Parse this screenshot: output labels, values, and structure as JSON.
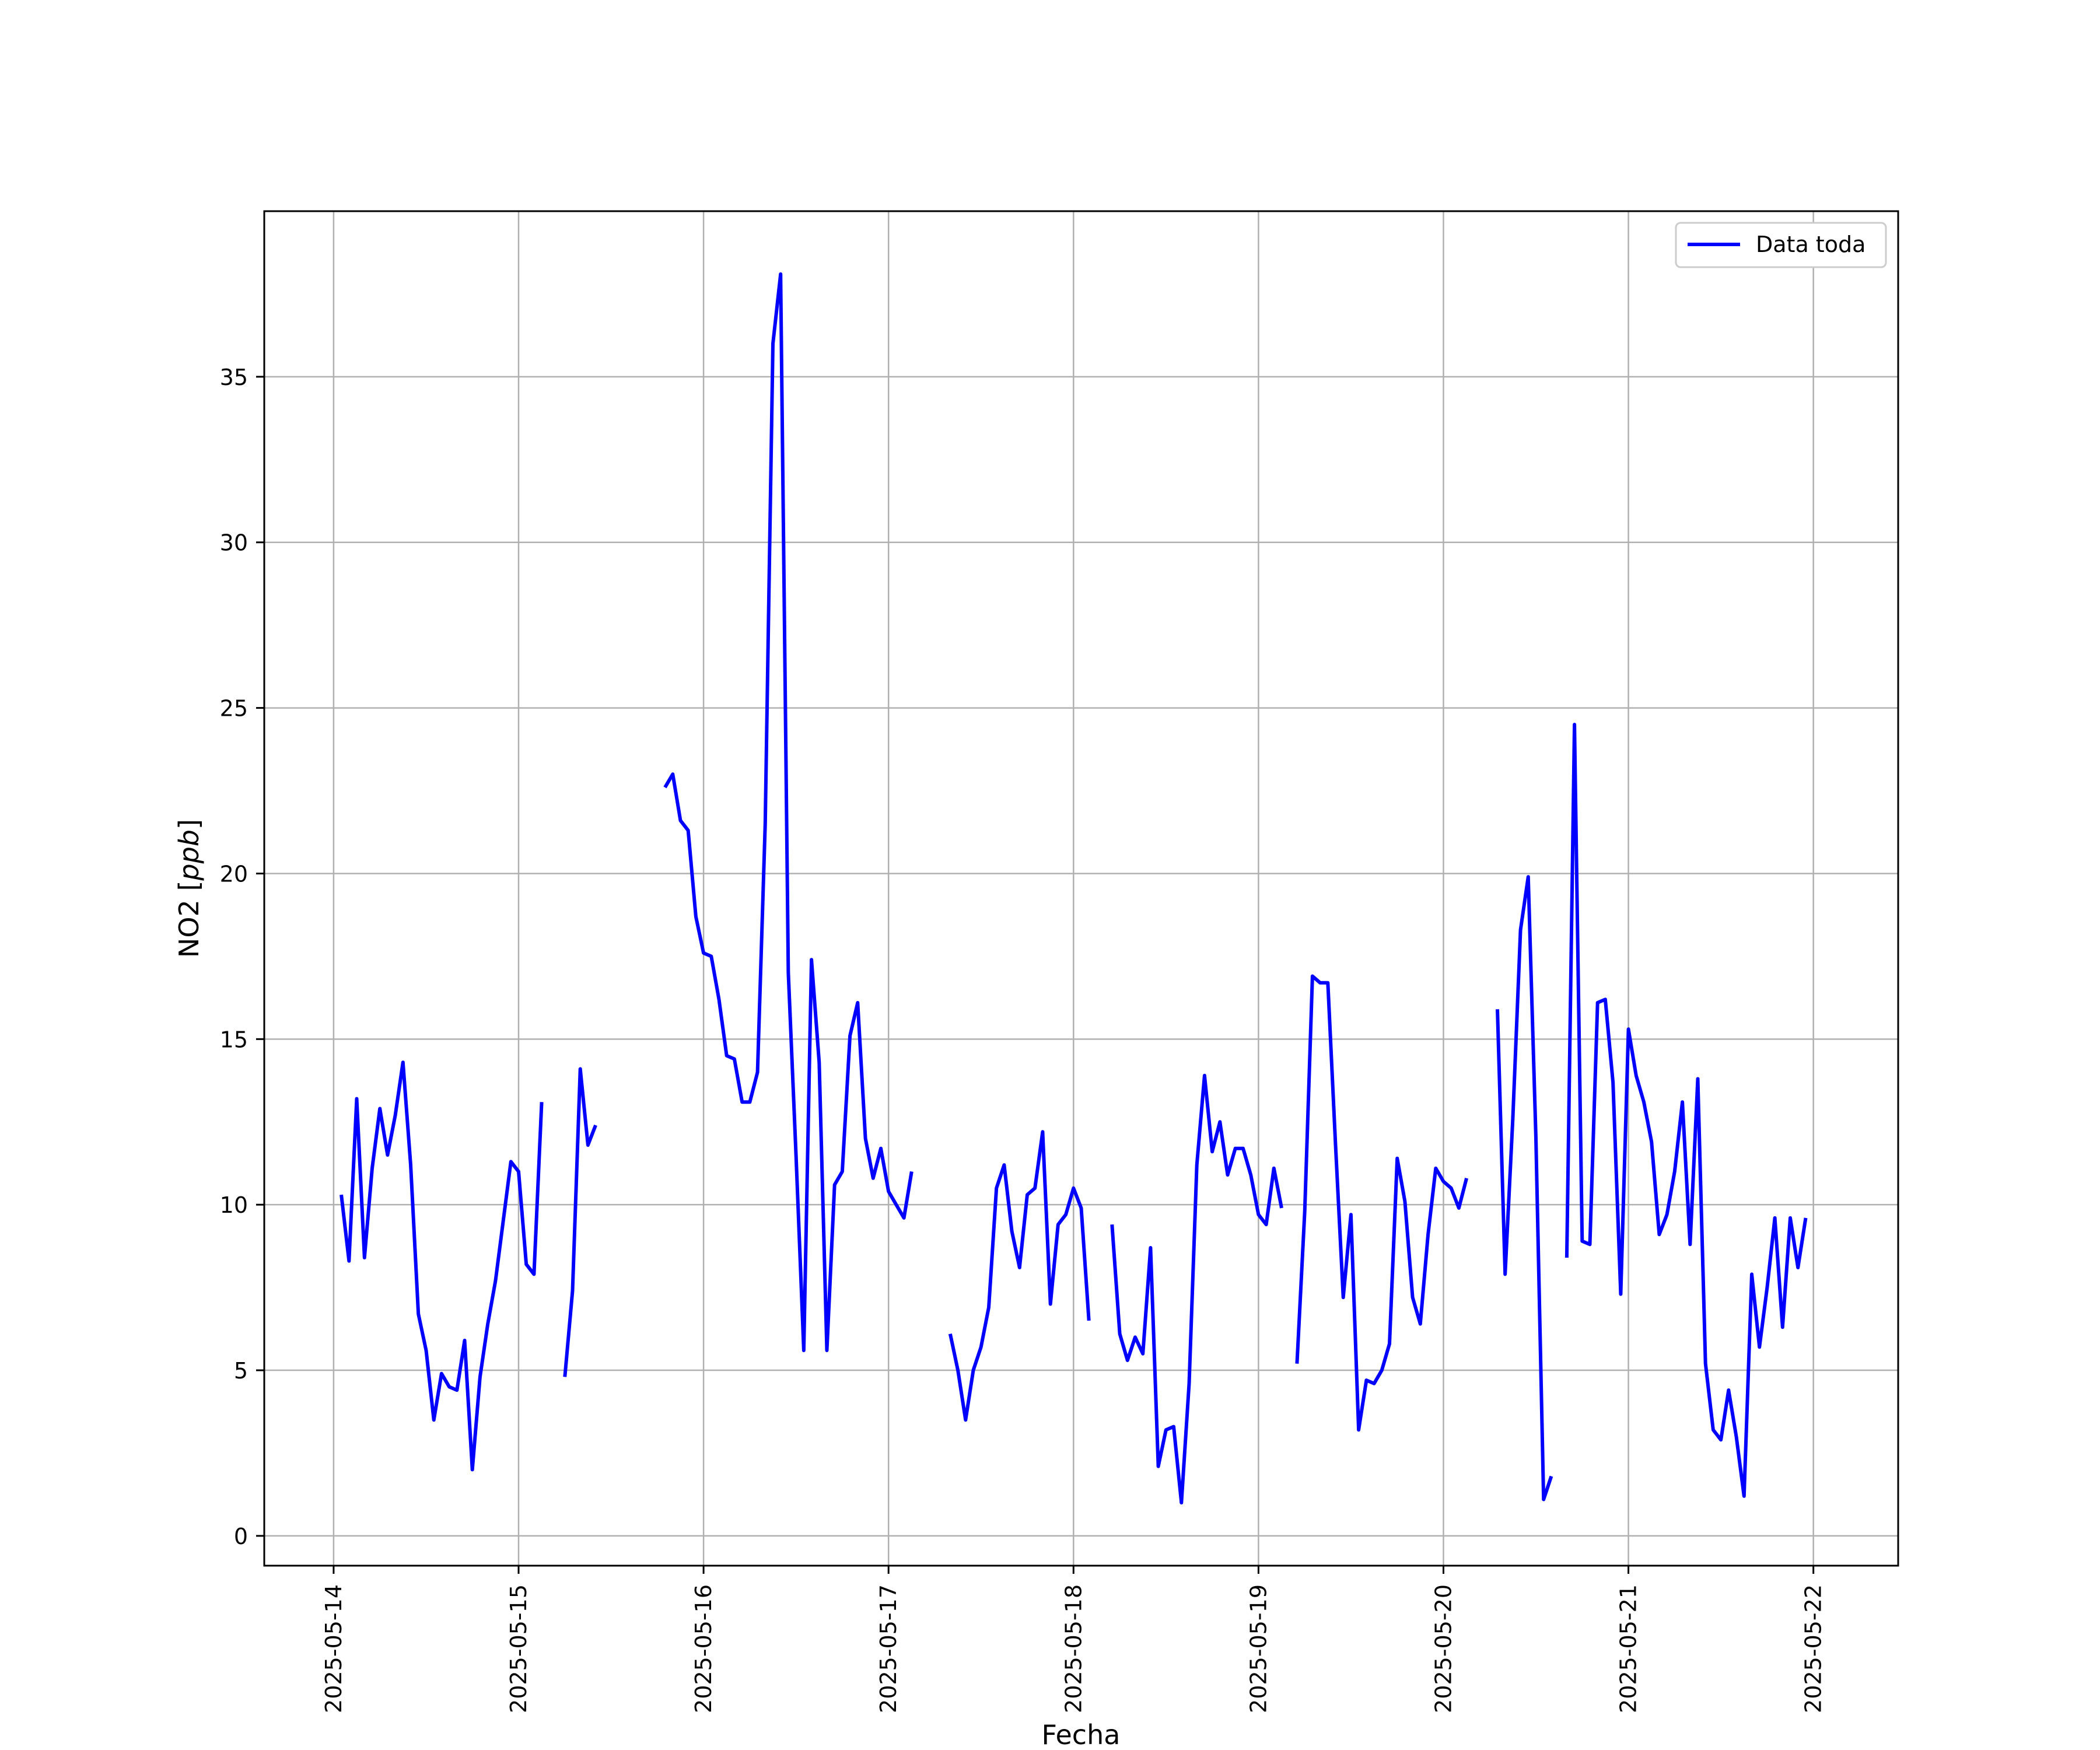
{
  "chart_data": {
    "type": "line",
    "xlabel": "Fecha",
    "ylabel": "NO2 [ppb]",
    "ylabel_main": "NO2 [",
    "ylabel_unit": "ppb",
    "ylabel_close": "]",
    "x_ticks": [
      "2025-05-14",
      "2025-05-15",
      "2025-05-16",
      "2025-05-17",
      "2025-05-18",
      "2025-05-19",
      "2025-05-20",
      "2025-05-21",
      "2025-05-22"
    ],
    "y_ticks": [
      0,
      5,
      10,
      15,
      20,
      25,
      30,
      35
    ],
    "xlim": [
      "2025-05-13 15:00",
      "2025-05-22 11:00"
    ],
    "ylim": [
      -0.9,
      40
    ],
    "grid": true,
    "legend_position": "top-right",
    "colors": {
      "series": "#0000ff",
      "grid": "#b0b0b0",
      "frame": "#000000"
    },
    "series": [
      {
        "name": "Data toda",
        "x_unit": "hours since 2025-05-14 00:00",
        "segments": [
          [
            [
              1,
              10.3
            ],
            [
              2,
              8.3
            ],
            [
              3,
              13.2
            ],
            [
              4,
              8.4
            ],
            [
              5,
              11.1
            ],
            [
              6,
              12.9
            ],
            [
              7,
              11.5
            ],
            [
              8,
              12.7
            ],
            [
              9,
              14.3
            ],
            [
              10,
              11.2
            ],
            [
              11,
              6.7
            ],
            [
              12,
              5.6
            ],
            [
              13,
              3.5
            ],
            [
              14,
              4.9
            ],
            [
              15,
              4.5
            ],
            [
              16,
              4.4
            ],
            [
              17,
              5.9
            ],
            [
              18,
              2.0
            ],
            [
              19,
              4.8
            ],
            [
              20,
              6.4
            ],
            [
              21,
              7.7
            ],
            [
              22,
              9.5
            ],
            [
              23,
              11.3
            ],
            [
              24,
              11.0
            ],
            [
              25,
              8.2
            ],
            [
              26,
              7.9
            ],
            [
              27,
              13.1
            ]
          ],
          [
            [
              30,
              4.8
            ],
            [
              31,
              7.4
            ],
            [
              32,
              14.1
            ],
            [
              33,
              11.8
            ],
            [
              34,
              12.4
            ]
          ],
          [
            [
              43,
              22.6
            ],
            [
              44,
              23.0
            ],
            [
              45,
              21.6
            ],
            [
              46,
              21.3
            ],
            [
              47,
              18.7
            ],
            [
              48,
              17.6
            ],
            [
              49,
              17.5
            ],
            [
              50,
              16.2
            ],
            [
              51,
              14.5
            ],
            [
              52,
              14.4
            ],
            [
              53,
              13.1
            ],
            [
              54,
              13.1
            ],
            [
              55,
              14.0
            ],
            [
              56,
              21.5
            ],
            [
              57,
              36.0
            ],
            [
              58,
              38.1
            ],
            [
              59,
              17.0
            ],
            [
              60,
              11.5
            ],
            [
              61,
              5.6
            ],
            [
              62,
              17.4
            ],
            [
              63,
              14.3
            ],
            [
              64,
              5.6
            ],
            [
              65,
              10.6
            ],
            [
              66,
              11.0
            ],
            [
              67,
              15.1
            ],
            [
              68,
              16.1
            ],
            [
              69,
              12.0
            ],
            [
              70,
              10.8
            ],
            [
              71,
              11.7
            ],
            [
              72,
              10.4
            ],
            [
              73,
              10.0
            ],
            [
              74,
              9.6
            ],
            [
              75,
              11.0
            ]
          ],
          [
            [
              80,
              6.1
            ],
            [
              81,
              5.0
            ],
            [
              82,
              3.5
            ],
            [
              83,
              5.0
            ],
            [
              84,
              5.7
            ],
            [
              85,
              6.9
            ],
            [
              86,
              10.5
            ],
            [
              87,
              11.2
            ],
            [
              88,
              9.2
            ],
            [
              89,
              8.1
            ],
            [
              90,
              10.3
            ],
            [
              91,
              10.5
            ],
            [
              92,
              12.2
            ],
            [
              93,
              7.0
            ],
            [
              94,
              9.4
            ],
            [
              95,
              9.7
            ],
            [
              96,
              10.5
            ],
            [
              97,
              9.9
            ],
            [
              98,
              6.5
            ]
          ],
          [
            [
              101,
              9.4
            ],
            [
              102,
              6.1
            ],
            [
              103,
              5.3
            ],
            [
              104,
              6.0
            ],
            [
              105,
              5.5
            ],
            [
              106,
              8.7
            ],
            [
              107,
              2.1
            ],
            [
              108,
              3.2
            ],
            [
              109,
              3.3
            ],
            [
              110,
              1.0
            ],
            [
              111,
              4.6
            ],
            [
              112,
              11.2
            ],
            [
              113,
              13.9
            ],
            [
              114,
              11.6
            ],
            [
              115,
              12.5
            ],
            [
              116,
              10.9
            ],
            [
              117,
              11.7
            ],
            [
              118,
              11.7
            ],
            [
              119,
              10.9
            ],
            [
              120,
              9.7
            ],
            [
              121,
              9.4
            ],
            [
              122,
              11.1
            ],
            [
              123,
              9.9
            ]
          ],
          [
            [
              125,
              5.2
            ],
            [
              126,
              9.8
            ],
            [
              127,
              16.9
            ],
            [
              128,
              16.7
            ],
            [
              129,
              16.7
            ],
            [
              130,
              11.8
            ],
            [
              131,
              7.2
            ],
            [
              132,
              9.7
            ],
            [
              133,
              3.2
            ],
            [
              134,
              4.7
            ],
            [
              135,
              4.6
            ],
            [
              136,
              5.0
            ],
            [
              137,
              5.8
            ],
            [
              138,
              11.4
            ],
            [
              139,
              10.1
            ],
            [
              140,
              7.2
            ],
            [
              141,
              6.4
            ],
            [
              142,
              9.1
            ],
            [
              143,
              11.1
            ],
            [
              144,
              10.7
            ],
            [
              145,
              10.5
            ],
            [
              146,
              9.9
            ],
            [
              147,
              10.8
            ]
          ],
          [
            [
              151,
              15.9
            ],
            [
              152,
              7.9
            ],
            [
              153,
              12.6
            ],
            [
              154,
              18.3
            ],
            [
              155,
              19.9
            ],
            [
              156,
              12.0
            ],
            [
              157,
              1.1
            ],
            [
              158,
              1.8
            ]
          ],
          [
            [
              160,
              8.4
            ],
            [
              161,
              24.5
            ],
            [
              162,
              8.9
            ],
            [
              163,
              8.8
            ],
            [
              164,
              16.1
            ],
            [
              165,
              16.2
            ],
            [
              166,
              13.7
            ],
            [
              167,
              7.3
            ],
            [
              168,
              15.3
            ],
            [
              169,
              13.9
            ],
            [
              170,
              13.1
            ],
            [
              171,
              11.9
            ],
            [
              172,
              9.1
            ],
            [
              173,
              9.7
            ],
            [
              174,
              11.0
            ],
            [
              175,
              13.1
            ],
            [
              176,
              8.8
            ],
            [
              177,
              13.8
            ],
            [
              178,
              5.2
            ],
            [
              179,
              3.2
            ],
            [
              180,
              2.9
            ],
            [
              181,
              4.4
            ],
            [
              182,
              3.0
            ],
            [
              183,
              1.2
            ],
            [
              184,
              7.9
            ],
            [
              185,
              5.7
            ],
            [
              186,
              7.5
            ],
            [
              187,
              9.6
            ],
            [
              188,
              6.3
            ],
            [
              189,
              9.6
            ],
            [
              190,
              8.1
            ],
            [
              191,
              9.6
            ]
          ]
        ]
      }
    ]
  }
}
